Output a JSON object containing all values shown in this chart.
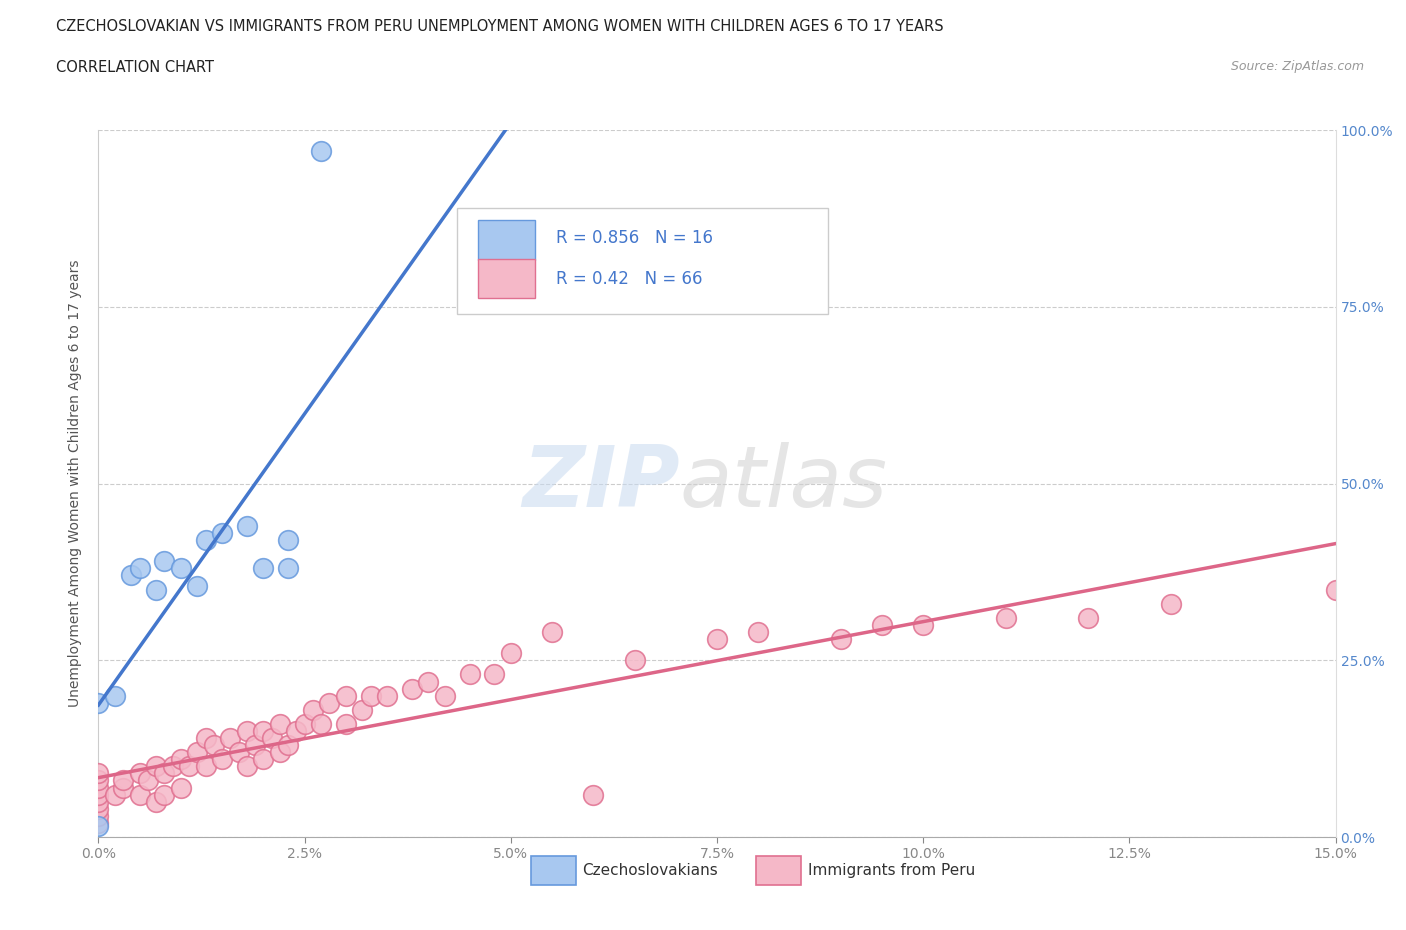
{
  "title_line1": "CZECHOSLOVAKIAN VS IMMIGRANTS FROM PERU UNEMPLOYMENT AMONG WOMEN WITH CHILDREN AGES 6 TO 17 YEARS",
  "title_line2": "CORRELATION CHART",
  "source_text": "Source: ZipAtlas.com",
  "ylabel": "Unemployment Among Women with Children Ages 6 to 17 years",
  "xlim": [
    0.0,
    0.15
  ],
  "ylim": [
    0.0,
    1.0
  ],
  "czech_color": "#a8c8f0",
  "czech_edge_color": "#6699dd",
  "peru_color": "#f5b8c8",
  "peru_edge_color": "#e07090",
  "czech_line_color": "#4477cc",
  "peru_line_color": "#dd6688",
  "right_tick_color": "#5588cc",
  "czech_R": 0.856,
  "czech_N": 16,
  "peru_R": 0.42,
  "peru_N": 66,
  "background_color": "#ffffff",
  "grid_color": "#cccccc",
  "legend_label_czech": "Czechoslovakians",
  "legend_label_peru": "Immigrants from Peru",
  "watermark_zip": "ZIP",
  "watermark_atlas": "atlas",
  "czech_x": [
    0.0,
    0.0,
    0.002,
    0.004,
    0.005,
    0.007,
    0.008,
    0.01,
    0.012,
    0.013,
    0.015,
    0.018,
    0.02,
    0.023,
    0.023,
    0.027
  ],
  "czech_y": [
    0.015,
    0.19,
    0.2,
    0.37,
    0.38,
    0.35,
    0.39,
    0.38,
    0.355,
    0.42,
    0.43,
    0.44,
    0.38,
    0.38,
    0.42,
    0.97
  ],
  "peru_x": [
    0.0,
    0.0,
    0.0,
    0.0,
    0.0,
    0.0,
    0.0,
    0.0,
    0.002,
    0.003,
    0.003,
    0.005,
    0.005,
    0.006,
    0.007,
    0.007,
    0.008,
    0.008,
    0.009,
    0.01,
    0.01,
    0.011,
    0.012,
    0.013,
    0.013,
    0.014,
    0.015,
    0.016,
    0.017,
    0.018,
    0.018,
    0.019,
    0.02,
    0.02,
    0.021,
    0.022,
    0.022,
    0.023,
    0.024,
    0.025,
    0.026,
    0.027,
    0.028,
    0.03,
    0.03,
    0.032,
    0.033,
    0.035,
    0.038,
    0.04,
    0.042,
    0.045,
    0.048,
    0.05,
    0.055,
    0.06,
    0.065,
    0.075,
    0.08,
    0.09,
    0.095,
    0.1,
    0.11,
    0.12,
    0.13,
    0.15
  ],
  "peru_y": [
    0.02,
    0.03,
    0.04,
    0.05,
    0.06,
    0.07,
    0.08,
    0.09,
    0.06,
    0.07,
    0.08,
    0.06,
    0.09,
    0.08,
    0.05,
    0.1,
    0.06,
    0.09,
    0.1,
    0.07,
    0.11,
    0.1,
    0.12,
    0.1,
    0.14,
    0.13,
    0.11,
    0.14,
    0.12,
    0.1,
    0.15,
    0.13,
    0.11,
    0.15,
    0.14,
    0.12,
    0.16,
    0.13,
    0.15,
    0.16,
    0.18,
    0.16,
    0.19,
    0.16,
    0.2,
    0.18,
    0.2,
    0.2,
    0.21,
    0.22,
    0.2,
    0.23,
    0.23,
    0.26,
    0.29,
    0.06,
    0.25,
    0.28,
    0.29,
    0.28,
    0.3,
    0.3,
    0.31,
    0.31,
    0.33,
    0.35
  ]
}
